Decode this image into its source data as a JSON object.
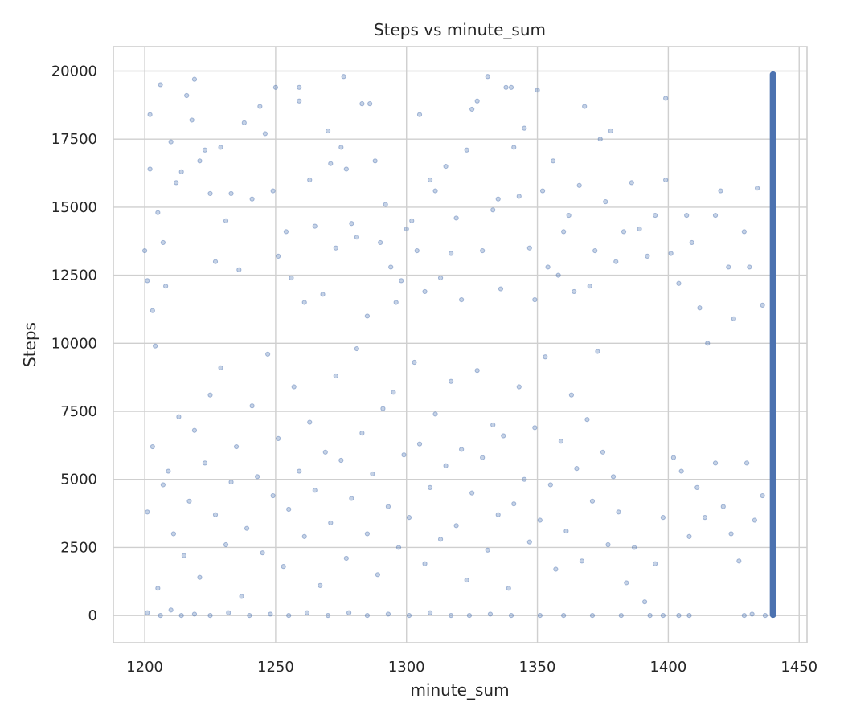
{
  "chart_data": {
    "type": "scatter",
    "title": "Steps vs minute_sum",
    "xlabel": "minute_sum",
    "ylabel": "Steps",
    "xlim": [
      1188,
      1453
    ],
    "ylim": [
      -1000,
      20900
    ],
    "x_ticks": [
      1200,
      1250,
      1300,
      1350,
      1400,
      1450
    ],
    "y_ticks": [
      0,
      2500,
      5000,
      7500,
      10000,
      12500,
      15000,
      17500,
      20000
    ],
    "x_tick_labels": [
      "1200",
      "1250",
      "1300",
      "1350",
      "1400",
      "1450"
    ],
    "y_tick_labels": [
      "0",
      "2500",
      "5000",
      "7500",
      "10000",
      "12500",
      "15000",
      "17500",
      "20000"
    ],
    "grid": true,
    "series": [
      {
        "color": "#4c72b0",
        "points": [
          [
            1200,
            13400
          ],
          [
            1201,
            12300
          ],
          [
            1202,
            16400
          ],
          [
            1202,
            18400
          ],
          [
            1203,
            11200
          ],
          [
            1204,
            9900
          ],
          [
            1205,
            14800
          ],
          [
            1206,
            19500
          ],
          [
            1207,
            13700
          ],
          [
            1208,
            12100
          ],
          [
            1210,
            17400
          ],
          [
            1212,
            15900
          ],
          [
            1214,
            16300
          ],
          [
            1216,
            19100
          ],
          [
            1218,
            18200
          ],
          [
            1219,
            19700
          ],
          [
            1221,
            16700
          ],
          [
            1223,
            17100
          ],
          [
            1225,
            15500
          ],
          [
            1227,
            13000
          ],
          [
            1229,
            17200
          ],
          [
            1231,
            14500
          ],
          [
            1233,
            15500
          ],
          [
            1236,
            12700
          ],
          [
            1238,
            18100
          ],
          [
            1241,
            15300
          ],
          [
            1244,
            18700
          ],
          [
            1246,
            17700
          ],
          [
            1249,
            15600
          ],
          [
            1250,
            19400
          ],
          [
            1251,
            13200
          ],
          [
            1254,
            14100
          ],
          [
            1256,
            12400
          ],
          [
            1259,
            19400
          ],
          [
            1259,
            18900
          ],
          [
            1261,
            11500
          ],
          [
            1263,
            16000
          ],
          [
            1265,
            14300
          ],
          [
            1268,
            11800
          ],
          [
            1270,
            17800
          ],
          [
            1271,
            16600
          ],
          [
            1273,
            13500
          ],
          [
            1275,
            17200
          ],
          [
            1276,
            19800
          ],
          [
            1277,
            16400
          ],
          [
            1279,
            14400
          ],
          [
            1281,
            13900
          ],
          [
            1283,
            18800
          ],
          [
            1285,
            11000
          ],
          [
            1286,
            18800
          ],
          [
            1288,
            16700
          ],
          [
            1290,
            13700
          ],
          [
            1292,
            15100
          ],
          [
            1294,
            12800
          ],
          [
            1296,
            11500
          ],
          [
            1298,
            12300
          ],
          [
            1300,
            14200
          ],
          [
            1302,
            14500
          ],
          [
            1304,
            13400
          ],
          [
            1305,
            18400
          ],
          [
            1307,
            11900
          ],
          [
            1309,
            16000
          ],
          [
            1311,
            15600
          ],
          [
            1313,
            12400
          ],
          [
            1315,
            16500
          ],
          [
            1317,
            13300
          ],
          [
            1319,
            14600
          ],
          [
            1321,
            11600
          ],
          [
            1323,
            17100
          ],
          [
            1325,
            18600
          ],
          [
            1327,
            18900
          ],
          [
            1329,
            13400
          ],
          [
            1331,
            19800
          ],
          [
            1333,
            14900
          ],
          [
            1335,
            15300
          ],
          [
            1336,
            12000
          ],
          [
            1338,
            19400
          ],
          [
            1340,
            19400
          ],
          [
            1341,
            17200
          ],
          [
            1343,
            15400
          ],
          [
            1345,
            17900
          ],
          [
            1347,
            13500
          ],
          [
            1349,
            11600
          ],
          [
            1350,
            19300
          ],
          [
            1352,
            15600
          ],
          [
            1354,
            12800
          ],
          [
            1356,
            16700
          ],
          [
            1358,
            12500
          ],
          [
            1360,
            14100
          ],
          [
            1362,
            14700
          ],
          [
            1364,
            11900
          ],
          [
            1366,
            15800
          ],
          [
            1368,
            18700
          ],
          [
            1370,
            12100
          ],
          [
            1372,
            13400
          ],
          [
            1374,
            17500
          ],
          [
            1376,
            15200
          ],
          [
            1378,
            17800
          ],
          [
            1380,
            13000
          ],
          [
            1383,
            14100
          ],
          [
            1386,
            15900
          ],
          [
            1389,
            14200
          ],
          [
            1392,
            13200
          ],
          [
            1395,
            14700
          ],
          [
            1399,
            19000
          ],
          [
            1399,
            16000
          ],
          [
            1401,
            13300
          ],
          [
            1404,
            12200
          ],
          [
            1407,
            14700
          ],
          [
            1409,
            13700
          ],
          [
            1412,
            11300
          ],
          [
            1415,
            10000
          ],
          [
            1418,
            14700
          ],
          [
            1420,
            15600
          ],
          [
            1423,
            12800
          ],
          [
            1425,
            10900
          ],
          [
            1429,
            14100
          ],
          [
            1431,
            12800
          ],
          [
            1434,
            15700
          ],
          [
            1436,
            11400
          ],
          [
            1201,
            3800
          ],
          [
            1203,
            6200
          ],
          [
            1205,
            1000
          ],
          [
            1207,
            4800
          ],
          [
            1209,
            5300
          ],
          [
            1211,
            3000
          ],
          [
            1213,
            7300
          ],
          [
            1215,
            2200
          ],
          [
            1217,
            4200
          ],
          [
            1219,
            6800
          ],
          [
            1221,
            1400
          ],
          [
            1223,
            5600
          ],
          [
            1225,
            8100
          ],
          [
            1227,
            3700
          ],
          [
            1229,
            9100
          ],
          [
            1231,
            2600
          ],
          [
            1233,
            4900
          ],
          [
            1235,
            6200
          ],
          [
            1237,
            700
          ],
          [
            1239,
            3200
          ],
          [
            1241,
            7700
          ],
          [
            1243,
            5100
          ],
          [
            1245,
            2300
          ],
          [
            1247,
            9600
          ],
          [
            1249,
            4400
          ],
          [
            1251,
            6500
          ],
          [
            1253,
            1800
          ],
          [
            1255,
            3900
          ],
          [
            1257,
            8400
          ],
          [
            1259,
            5300
          ],
          [
            1261,
            2900
          ],
          [
            1263,
            7100
          ],
          [
            1265,
            4600
          ],
          [
            1267,
            1100
          ],
          [
            1269,
            6000
          ],
          [
            1271,
            3400
          ],
          [
            1273,
            8800
          ],
          [
            1275,
            5700
          ],
          [
            1277,
            2100
          ],
          [
            1279,
            4300
          ],
          [
            1281,
            9800
          ],
          [
            1283,
            6700
          ],
          [
            1285,
            3000
          ],
          [
            1287,
            5200
          ],
          [
            1289,
            1500
          ],
          [
            1291,
            7600
          ],
          [
            1293,
            4000
          ],
          [
            1295,
            8200
          ],
          [
            1297,
            2500
          ],
          [
            1299,
            5900
          ],
          [
            1301,
            3600
          ],
          [
            1303,
            9300
          ],
          [
            1305,
            6300
          ],
          [
            1307,
            1900
          ],
          [
            1309,
            4700
          ],
          [
            1311,
            7400
          ],
          [
            1313,
            2800
          ],
          [
            1315,
            5500
          ],
          [
            1317,
            8600
          ],
          [
            1319,
            3300
          ],
          [
            1321,
            6100
          ],
          [
            1323,
            1300
          ],
          [
            1325,
            4500
          ],
          [
            1327,
            9000
          ],
          [
            1329,
            5800
          ],
          [
            1331,
            2400
          ],
          [
            1333,
            7000
          ],
          [
            1335,
            3700
          ],
          [
            1337,
            6600
          ],
          [
            1339,
            1000
          ],
          [
            1341,
            4100
          ],
          [
            1343,
            8400
          ],
          [
            1345,
            5000
          ],
          [
            1347,
            2700
          ],
          [
            1349,
            6900
          ],
          [
            1351,
            3500
          ],
          [
            1353,
            9500
          ],
          [
            1355,
            4800
          ],
          [
            1357,
            1700
          ],
          [
            1359,
            6400
          ],
          [
            1361,
            3100
          ],
          [
            1363,
            8100
          ],
          [
            1365,
            5400
          ],
          [
            1367,
            2000
          ],
          [
            1369,
            7200
          ],
          [
            1371,
            4200
          ],
          [
            1373,
            9700
          ],
          [
            1375,
            6000
          ],
          [
            1377,
            2600
          ],
          [
            1379,
            5100
          ],
          [
            1381,
            3800
          ],
          [
            1384,
            1200
          ],
          [
            1387,
            2500
          ],
          [
            1391,
            500
          ],
          [
            1395,
            1900
          ],
          [
            1398,
            3600
          ],
          [
            1402,
            5800
          ],
          [
            1405,
            5300
          ],
          [
            1408,
            2900
          ],
          [
            1411,
            4700
          ],
          [
            1414,
            3600
          ],
          [
            1418,
            5600
          ],
          [
            1421,
            4000
          ],
          [
            1424,
            3000
          ],
          [
            1427,
            2000
          ],
          [
            1430,
            5600
          ],
          [
            1433,
            3500
          ],
          [
            1436,
            4400
          ],
          [
            1201,
            100
          ],
          [
            1206,
            0
          ],
          [
            1210,
            200
          ],
          [
            1214,
            0
          ],
          [
            1219,
            50
          ],
          [
            1225,
            0
          ],
          [
            1232,
            100
          ],
          [
            1240,
            0
          ],
          [
            1248,
            50
          ],
          [
            1255,
            0
          ],
          [
            1262,
            100
          ],
          [
            1270,
            0
          ],
          [
            1278,
            100
          ],
          [
            1285,
            0
          ],
          [
            1293,
            50
          ],
          [
            1301,
            0
          ],
          [
            1309,
            100
          ],
          [
            1317,
            0
          ],
          [
            1324,
            0
          ],
          [
            1332,
            50
          ],
          [
            1340,
            0
          ],
          [
            1351,
            0
          ],
          [
            1360,
            0
          ],
          [
            1371,
            0
          ],
          [
            1382,
            0
          ],
          [
            1393,
            0
          ],
          [
            1398,
            0
          ],
          [
            1404,
            0
          ],
          [
            1408,
            0
          ],
          [
            1429,
            0
          ],
          [
            1432,
            50
          ],
          [
            1437,
            0
          ]
        ],
        "strip": {
          "x": 1440,
          "y_min": 0,
          "y_max": 19900
        }
      }
    ]
  }
}
